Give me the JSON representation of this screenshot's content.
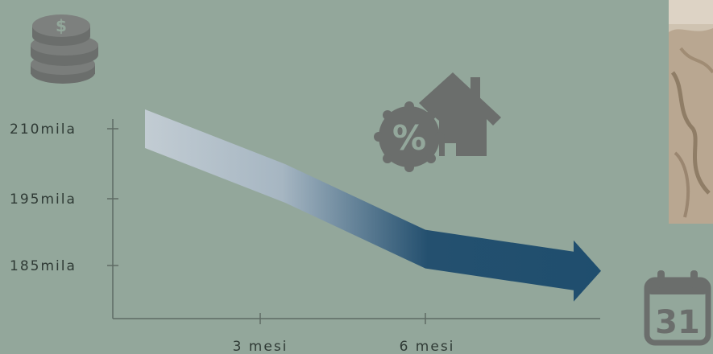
{
  "colors": {
    "background": "#93a79b",
    "icon": "#6b6e6c",
    "axis": "#5e6b64",
    "arrow_start": "#c2ccd3",
    "arrow_end": "#1f4e6e"
  },
  "icons": [
    "coins-stack-icon",
    "house-percent-icon",
    "calendar-31-icon"
  ],
  "calendar_day": "31",
  "percent_symbol": "%",
  "chart_data": {
    "type": "line",
    "title": "",
    "xlabel": "",
    "ylabel": "",
    "y_tick_labels": [
      "210mila",
      "195mila",
      "185mila"
    ],
    "x_tick_labels": [
      "3 mesi",
      "6 mesi"
    ],
    "x": [
      0,
      3,
      6,
      9
    ],
    "series": [
      {
        "values": [
          210000,
          200000,
          188000,
          184000
        ]
      }
    ],
    "grid": false
  }
}
